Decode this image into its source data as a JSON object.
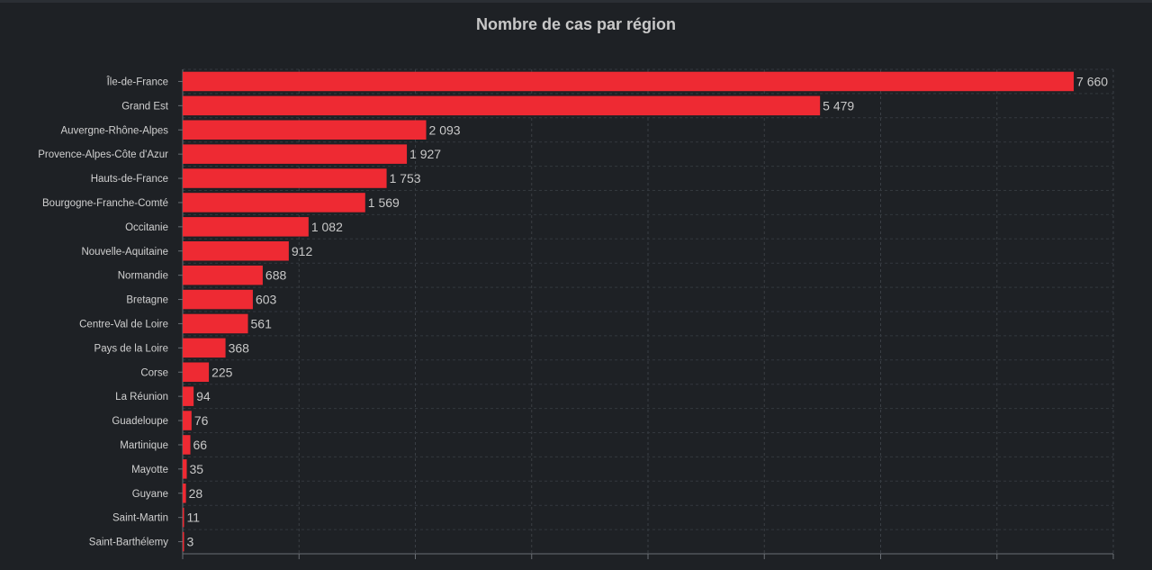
{
  "chart_data": {
    "type": "bar",
    "orientation": "horizontal",
    "title": "Nombre de cas par région",
    "xlabel": "",
    "ylabel": "",
    "xlim": [
      0,
      8000
    ],
    "grid": true,
    "bar_color": "#ee2a33",
    "categories": [
      "Île-de-France",
      "Grand Est",
      "Auvergne-Rhône-Alpes",
      "Provence-Alpes-Côte d'Azur",
      "Hauts-de-France",
      "Bourgogne-Franche-Comté",
      "Occitanie",
      "Nouvelle-Aquitaine",
      "Normandie",
      "Bretagne",
      "Centre-Val de Loire",
      "Pays de la Loire",
      "Corse",
      "La Réunion",
      "Guadeloupe",
      "Martinique",
      "Mayotte",
      "Guyane",
      "Saint-Martin",
      "Saint-Barthélemy"
    ],
    "values": [
      7660,
      5479,
      2093,
      1927,
      1753,
      1569,
      1082,
      912,
      688,
      603,
      561,
      368,
      225,
      94,
      76,
      66,
      35,
      28,
      11,
      3
    ],
    "value_labels": [
      "7 660",
      "5 479",
      "2 093",
      "1 927",
      "1 753",
      "1 569",
      "1 082",
      "912",
      "688",
      "603",
      "561",
      "368",
      "225",
      "94",
      "76",
      "66",
      "35",
      "28",
      "11",
      "3"
    ]
  }
}
